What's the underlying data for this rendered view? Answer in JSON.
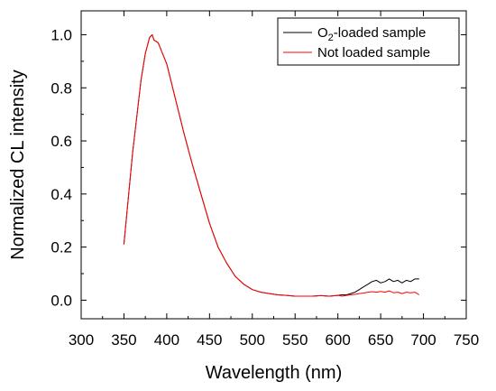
{
  "chart_data": {
    "type": "line",
    "xlabel": "Wavelength (nm)",
    "ylabel": "Normalized CL intensity",
    "xlim": [
      300,
      750
    ],
    "ylim": [
      -0.07,
      1.09
    ],
    "x_ticks": [
      300,
      350,
      400,
      450,
      500,
      550,
      600,
      650,
      700,
      750
    ],
    "y_ticks": [
      0.0,
      0.2,
      0.4,
      0.6,
      0.8,
      1.0
    ],
    "y_tick_labels": [
      "0.0",
      "0.2",
      "0.4",
      "0.6",
      "0.8",
      "1.0"
    ],
    "grid": false,
    "legend": {
      "position": "top-right",
      "entries": [
        {
          "pre": "O",
          "sub": "2",
          "post": "-loaded sample"
        },
        {
          "pre": "Not loaded sample",
          "sub": "",
          "post": ""
        }
      ]
    },
    "series": [
      {
        "name": "O2-loaded sample",
        "color": "#000000",
        "x": [
          350,
          360,
          370,
          375,
          380,
          383,
          385,
          390,
          395,
          400,
          410,
          420,
          430,
          440,
          450,
          460,
          470,
          480,
          490,
          500,
          510,
          520,
          530,
          540,
          550,
          560,
          570,
          580,
          590,
          600,
          605,
          610,
          615,
          620,
          625,
          630,
          635,
          640,
          645,
          650,
          655,
          660,
          665,
          670,
          675,
          680,
          685,
          690,
          695
        ],
        "y": [
          0.21,
          0.55,
          0.83,
          0.93,
          0.99,
          1.0,
          0.98,
          0.97,
          0.93,
          0.89,
          0.76,
          0.63,
          0.51,
          0.4,
          0.29,
          0.2,
          0.14,
          0.09,
          0.06,
          0.04,
          0.03,
          0.025,
          0.02,
          0.018,
          0.015,
          0.015,
          0.015,
          0.017,
          0.015,
          0.018,
          0.02,
          0.02,
          0.025,
          0.03,
          0.04,
          0.05,
          0.06,
          0.07,
          0.075,
          0.065,
          0.07,
          0.08,
          0.07,
          0.075,
          0.065,
          0.075,
          0.07,
          0.08,
          0.08
        ]
      },
      {
        "name": "Not loaded sample",
        "color": "#ff0000",
        "x": [
          350,
          360,
          370,
          375,
          380,
          383,
          385,
          390,
          395,
          400,
          410,
          420,
          430,
          440,
          450,
          460,
          470,
          480,
          490,
          500,
          510,
          520,
          530,
          540,
          550,
          560,
          570,
          580,
          590,
          600,
          605,
          610,
          615,
          620,
          625,
          630,
          635,
          640,
          645,
          650,
          655,
          660,
          665,
          670,
          675,
          680,
          685,
          690,
          695
        ],
        "y": [
          0.21,
          0.55,
          0.83,
          0.93,
          0.99,
          1.0,
          0.98,
          0.97,
          0.93,
          0.89,
          0.76,
          0.63,
          0.51,
          0.4,
          0.29,
          0.2,
          0.14,
          0.09,
          0.06,
          0.04,
          0.03,
          0.025,
          0.02,
          0.018,
          0.015,
          0.015,
          0.015,
          0.017,
          0.015,
          0.018,
          0.015,
          0.018,
          0.02,
          0.022,
          0.025,
          0.027,
          0.03,
          0.032,
          0.03,
          0.033,
          0.03,
          0.035,
          0.028,
          0.03,
          0.025,
          0.03,
          0.028,
          0.03,
          0.02
        ]
      }
    ]
  }
}
